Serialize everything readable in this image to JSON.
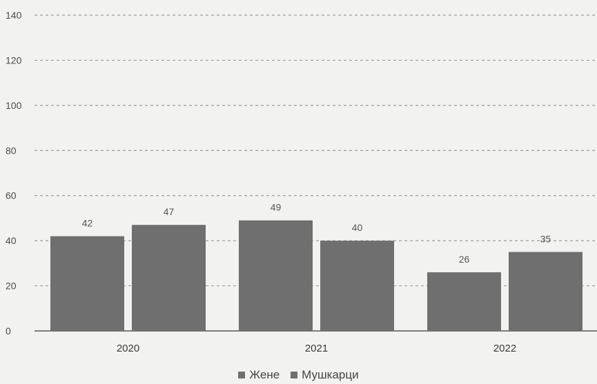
{
  "chart_data": {
    "type": "bar",
    "categories": [
      "2020",
      "2021",
      "2022"
    ],
    "series": [
      {
        "name": "Жене",
        "values": [
          42,
          49,
          26
        ]
      },
      {
        "name": "Мушкарци",
        "values": [
          47,
          40,
          35
        ]
      }
    ],
    "data_labels": [
      [
        "42",
        "49",
        "26"
      ],
      [
        "47",
        "40",
        "35"
      ]
    ],
    "yticks": [
      0,
      20,
      40,
      60,
      80,
      100,
      120,
      140
    ],
    "ylim": [
      0,
      140
    ],
    "grid": true,
    "legend_position": "bottom-center",
    "colors": {
      "bar": "#6f6f6f",
      "grid": "#9a9a9a",
      "axis": "#555555",
      "background": "#f2f2f0"
    }
  }
}
